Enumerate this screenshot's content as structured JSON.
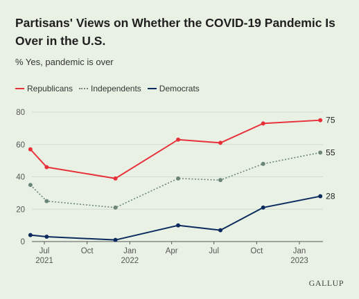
{
  "title": "Partisans' Views on Whether the COVID-19 Pandemic Is Over in the U.S.",
  "subtitle": "% Yes, pandemic is over",
  "source": "GALLUP",
  "chart_data": {
    "type": "line",
    "title": "Partisans' Views on Whether the COVID-19 Pandemic Is Over in the U.S.",
    "subtitle": "% Yes, pandemic is over",
    "xlabel": "",
    "ylabel": "",
    "ylim": [
      0,
      80
    ],
    "yticks": [
      0,
      20,
      40,
      60,
      80
    ],
    "grid": true,
    "legend_position": "top-left",
    "x_tick_labels": [
      {
        "date": "2021-07-01",
        "month": "Jul",
        "year": "2021"
      },
      {
        "date": "2021-10-01",
        "month": "Oct",
        "year": ""
      },
      {
        "date": "2022-01-01",
        "month": "Jan",
        "year": "2022"
      },
      {
        "date": "2022-04-01",
        "month": "Apr",
        "year": ""
      },
      {
        "date": "2022-07-01",
        "month": "Jul",
        "year": ""
      },
      {
        "date": "2022-10-01",
        "month": "Oct",
        "year": ""
      },
      {
        "date": "2023-01-01",
        "month": "Jan",
        "year": "2023"
      }
    ],
    "x": [
      "2021-06-01",
      "2021-07-06",
      "2021-12-01",
      "2022-04-15",
      "2022-07-15",
      "2022-10-15",
      "2023-02-15"
    ],
    "series": [
      {
        "name": "Republicans",
        "color": "#e8303a",
        "style": "solid",
        "values": [
          57,
          46,
          39,
          63,
          61,
          73,
          75
        ],
        "end_label": "75"
      },
      {
        "name": "Independents",
        "color": "#6b8579",
        "style": "dotted",
        "values": [
          35,
          25,
          21,
          39,
          38,
          48,
          55
        ],
        "end_label": "55"
      },
      {
        "name": "Democrats",
        "color": "#0b2a5e",
        "style": "solid",
        "values": [
          4,
          3,
          1,
          10,
          7,
          21,
          28
        ],
        "end_label": "28"
      }
    ]
  }
}
